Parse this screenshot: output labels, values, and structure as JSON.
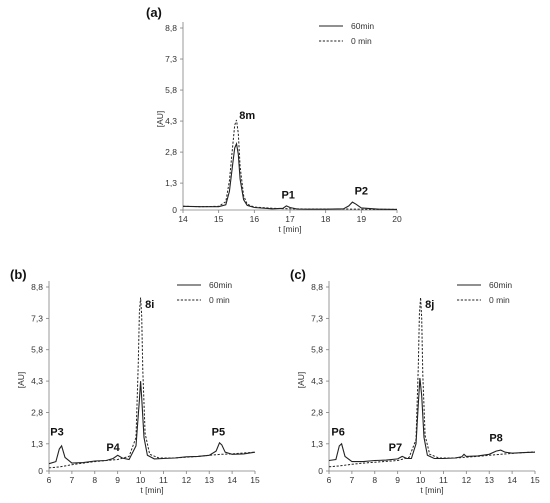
{
  "chart_data": [
    {
      "type": "line",
      "panel_label": "(a)",
      "xlabel": "t [min]",
      "ylabel": "[AU]",
      "xlim": [
        14,
        20
      ],
      "ylim": [
        0,
        8.8
      ],
      "xticks": [
        14,
        15,
        16,
        17,
        18,
        19,
        20
      ],
      "yticks": [
        0,
        1.3,
        2.8,
        4.3,
        5.8,
        7.3,
        8.8
      ],
      "ytick_labels": [
        "0",
        "1,3",
        "2,8",
        "4,3",
        "5,8",
        "7,3",
        "8,8"
      ],
      "legend": {
        "position": "top-right",
        "entries": [
          "60min",
          "0 min"
        ]
      },
      "series": [
        {
          "name": "60min",
          "style": "solid",
          "x": [
            14.0,
            14.5,
            15.0,
            15.2,
            15.3,
            15.4,
            15.45,
            15.5,
            15.55,
            15.6,
            15.7,
            15.8,
            16.0,
            16.5,
            16.8,
            16.9,
            17.0,
            17.2,
            17.5,
            18.0,
            18.5,
            18.65,
            18.75,
            18.85,
            19.0,
            19.5,
            20.0
          ],
          "y": [
            0.18,
            0.16,
            0.16,
            0.25,
            0.9,
            2.3,
            3.0,
            3.2,
            2.7,
            1.5,
            0.5,
            0.22,
            0.12,
            0.06,
            0.08,
            0.2,
            0.12,
            0.05,
            0.04,
            0.04,
            0.06,
            0.2,
            0.38,
            0.28,
            0.1,
            0.04,
            0.03
          ]
        },
        {
          "name": "0 min",
          "style": "dashed",
          "x": [
            14.0,
            14.5,
            15.0,
            15.2,
            15.3,
            15.4,
            15.45,
            15.5,
            15.55,
            15.6,
            15.7,
            15.8,
            16.0,
            16.5,
            17.0,
            17.5,
            18.0,
            18.5,
            19.0,
            19.5,
            20.0
          ],
          "y": [
            0.18,
            0.16,
            0.18,
            0.4,
            1.4,
            3.2,
            4.1,
            4.35,
            3.7,
            2.1,
            0.7,
            0.28,
            0.14,
            0.08,
            0.06,
            0.05,
            0.05,
            0.05,
            0.04,
            0.03,
            0.03
          ]
        }
      ],
      "annotations": [
        {
          "text": "8m",
          "x": 15.8,
          "y": 4.4
        },
        {
          "text": "P1",
          "x": 16.95,
          "y": 0.55
        },
        {
          "text": "P2",
          "x": 19.0,
          "y": 0.75
        }
      ]
    },
    {
      "type": "line",
      "panel_label": "(b)",
      "xlabel": "t [min]",
      "ylabel": "[AU]",
      "xlim": [
        6,
        15
      ],
      "ylim": [
        0,
        8.8
      ],
      "xticks": [
        6,
        7,
        8,
        9,
        10,
        11,
        12,
        13,
        14,
        15
      ],
      "yticks": [
        0,
        1.3,
        2.8,
        4.3,
        5.8,
        7.3,
        8.8
      ],
      "ytick_labels": [
        "0",
        "1,3",
        "2,8",
        "4,3",
        "5,8",
        "7,3",
        "8,8"
      ],
      "legend": {
        "position": "top-right",
        "entries": [
          "60min",
          "0 min"
        ]
      },
      "series": [
        {
          "name": "60min",
          "style": "solid",
          "x": [
            6.0,
            6.3,
            6.45,
            6.55,
            6.7,
            7.0,
            7.5,
            8.0,
            8.5,
            8.8,
            9.0,
            9.2,
            9.5,
            9.8,
            9.95,
            10.0,
            10.05,
            10.15,
            10.3,
            10.6,
            11.0,
            11.5,
            12.0,
            12.5,
            13.0,
            13.3,
            13.45,
            13.55,
            13.7,
            14.0,
            14.5,
            15.0
          ],
          "y": [
            0.35,
            0.45,
            1.05,
            1.2,
            0.65,
            0.38,
            0.4,
            0.48,
            0.5,
            0.6,
            0.75,
            0.62,
            0.55,
            1.2,
            3.4,
            4.3,
            3.5,
            1.6,
            0.75,
            0.58,
            0.6,
            0.62,
            0.68,
            0.7,
            0.75,
            0.95,
            1.35,
            1.25,
            0.9,
            0.8,
            0.82,
            0.9
          ]
        },
        {
          "name": "0 min",
          "style": "dashed",
          "x": [
            6.0,
            6.5,
            7.0,
            7.5,
            8.0,
            8.5,
            9.0,
            9.5,
            9.8,
            9.9,
            9.95,
            10.0,
            10.05,
            10.1,
            10.2,
            10.4,
            10.8,
            11.5,
            12.0,
            12.5,
            13.0,
            13.5,
            14.0,
            14.5,
            15.0
          ],
          "y": [
            0.15,
            0.2,
            0.3,
            0.38,
            0.45,
            0.5,
            0.55,
            0.7,
            1.6,
            5.2,
            7.6,
            8.3,
            7.4,
            4.8,
            1.8,
            0.8,
            0.62,
            0.62,
            0.66,
            0.7,
            0.75,
            0.8,
            0.82,
            0.86,
            0.9
          ]
        }
      ],
      "annotations": [
        {
          "text": "8i",
          "x": 10.4,
          "y": 7.8
        },
        {
          "text": "P3",
          "x": 6.35,
          "y": 1.7
        },
        {
          "text": "P4",
          "x": 8.8,
          "y": 0.95
        },
        {
          "text": "P5",
          "x": 13.4,
          "y": 1.7
        }
      ]
    },
    {
      "type": "line",
      "panel_label": "(c)",
      "xlabel": "t [min]",
      "ylabel": "[AU]",
      "xlim": [
        6,
        15
      ],
      "ylim": [
        0,
        8.8
      ],
      "xticks": [
        6,
        7,
        8,
        9,
        10,
        11,
        12,
        13,
        14,
        15
      ],
      "yticks": [
        0,
        1.3,
        2.8,
        4.3,
        5.8,
        7.3,
        8.8
      ],
      "ytick_labels": [
        "0",
        "1,3",
        "2,8",
        "4,3",
        "5,8",
        "7,3",
        "8,8"
      ],
      "legend": {
        "position": "top-right",
        "entries": [
          "60min",
          "0 min"
        ]
      },
      "series": [
        {
          "name": "60min",
          "style": "solid",
          "x": [
            6.0,
            6.3,
            6.45,
            6.55,
            6.7,
            7.0,
            7.5,
            8.0,
            8.5,
            9.0,
            9.2,
            9.4,
            9.6,
            9.8,
            9.9,
            9.97,
            10.05,
            10.15,
            10.3,
            10.6,
            11.0,
            11.5,
            11.8,
            11.9,
            12.0,
            12.5,
            13.0,
            13.3,
            13.5,
            13.7,
            14.0,
            14.5,
            15.0
          ],
          "y": [
            0.5,
            0.55,
            1.2,
            1.3,
            0.7,
            0.45,
            0.45,
            0.5,
            0.52,
            0.58,
            0.7,
            0.6,
            0.6,
            1.3,
            3.2,
            4.45,
            3.6,
            1.6,
            0.75,
            0.6,
            0.6,
            0.62,
            0.68,
            0.8,
            0.7,
            0.72,
            0.8,
            0.95,
            1.0,
            0.9,
            0.85,
            0.88,
            0.9
          ]
        },
        {
          "name": "0 min",
          "style": "dashed",
          "x": [
            6.0,
            6.5,
            7.0,
            7.5,
            8.0,
            8.5,
            9.0,
            9.5,
            9.8,
            9.9,
            9.95,
            10.0,
            10.05,
            10.1,
            10.2,
            10.4,
            10.8,
            11.5,
            12.0,
            12.5,
            13.0,
            13.5,
            14.0,
            14.5,
            15.0
          ],
          "y": [
            0.2,
            0.25,
            0.32,
            0.38,
            0.42,
            0.46,
            0.5,
            0.65,
            1.5,
            5.0,
            7.5,
            8.3,
            7.3,
            4.6,
            1.7,
            0.8,
            0.62,
            0.62,
            0.66,
            0.7,
            0.75,
            0.8,
            0.84,
            0.88,
            0.92
          ]
        }
      ],
      "annotations": [
        {
          "text": "8j",
          "x": 10.4,
          "y": 7.8
        },
        {
          "text": "P6",
          "x": 6.4,
          "y": 1.7
        },
        {
          "text": "P7",
          "x": 8.9,
          "y": 0.95
        },
        {
          "text": "P8",
          "x": 13.3,
          "y": 1.4
        }
      ]
    }
  ]
}
